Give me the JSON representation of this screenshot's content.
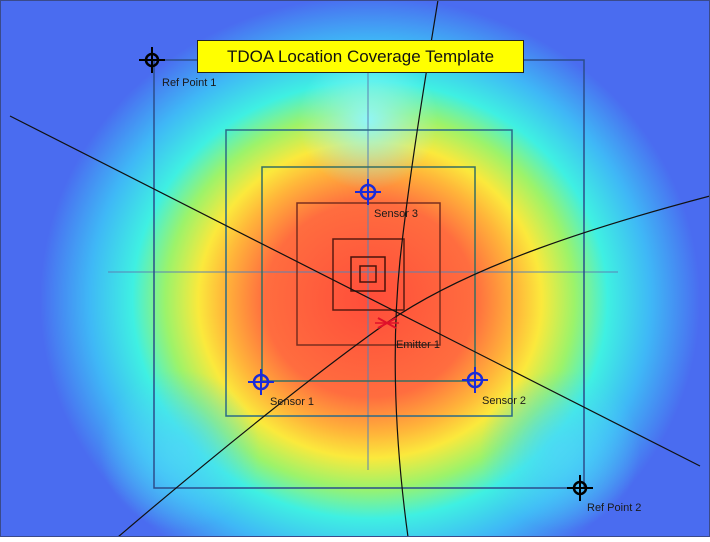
{
  "title": "TDOA Location Coverage Template",
  "ref_points": [
    {
      "label": "Ref Point 1"
    },
    {
      "label": "Ref Point 2"
    }
  ],
  "sensors": [
    {
      "label": "Sensor 1"
    },
    {
      "label": "Sensor 2"
    },
    {
      "label": "Sensor 3"
    }
  ],
  "emitter": {
    "label": "Emitter 1"
  },
  "colors": {
    "background": "#4b6cf0",
    "heat_peak": "#ff5a3c",
    "sensor_marker": "#1a2bd8",
    "ref_marker": "#000000",
    "emitter_marker": "#e0102a",
    "title_background": "#ffff00"
  }
}
